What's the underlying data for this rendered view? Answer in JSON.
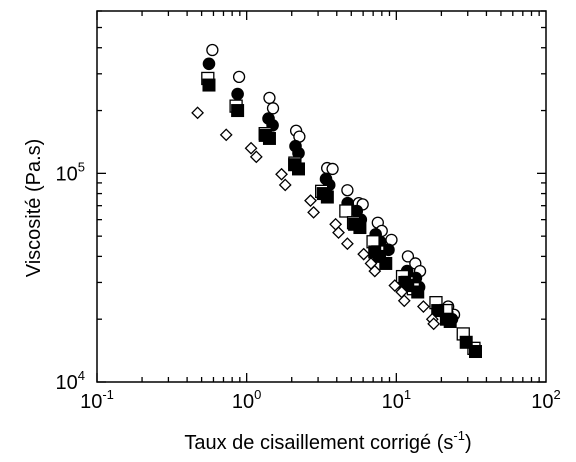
{
  "chart_data": {
    "type": "scatter",
    "title": "",
    "xlabel": "Taux de cisaillement corrigé (s",
    "xlabel_sup": "-1",
    "xlabel_end": ")",
    "ylabel": "Viscosité (Pa.s)",
    "x_scale": "log",
    "y_scale": "log",
    "xlim": [
      0.1,
      100
    ],
    "ylim": [
      10000,
      600000
    ],
    "grid": false,
    "legend": "none",
    "x_ticks": [
      {
        "value": 0.1,
        "base": "10",
        "exp": "-1"
      },
      {
        "value": 1,
        "base": "10",
        "exp": "0"
      },
      {
        "value": 10,
        "base": "10",
        "exp": "1"
      },
      {
        "value": 100,
        "base": "10",
        "exp": "2"
      }
    ],
    "y_ticks": [
      {
        "value": 10000,
        "base": "10",
        "exp": "4"
      },
      {
        "value": 100000,
        "base": "10",
        "exp": "5"
      }
    ],
    "series": [
      {
        "marker": "open-circle",
        "points": [
          [
            0.59,
            390000
          ],
          [
            0.89,
            290000
          ],
          [
            1.42,
            230000
          ],
          [
            1.5,
            205000
          ],
          [
            2.14,
            160000
          ],
          [
            2.25,
            150000
          ],
          [
            3.45,
            106000
          ],
          [
            3.75,
            105000
          ],
          [
            4.71,
            83000
          ],
          [
            5.61,
            72000
          ],
          [
            5.96,
            71000
          ],
          [
            7.52,
            58000
          ],
          [
            7.99,
            53000
          ],
          [
            9.28,
            48000
          ],
          [
            11.95,
            40000
          ],
          [
            13.39,
            37000
          ],
          [
            14.4,
            34000
          ],
          [
            22.2,
            23000
          ],
          [
            24.3,
            21000
          ]
        ]
      },
      {
        "marker": "filled-circle",
        "points": [
          [
            0.56,
            335000
          ],
          [
            0.87,
            240000
          ],
          [
            1.4,
            183000
          ],
          [
            1.49,
            170000
          ],
          [
            2.12,
            135000
          ],
          [
            2.22,
            125000
          ],
          [
            3.39,
            94000
          ],
          [
            3.56,
            88000
          ],
          [
            4.73,
            72000
          ],
          [
            5.44,
            66000
          ],
          [
            5.79,
            60000
          ],
          [
            7.28,
            51000
          ],
          [
            7.8,
            47000
          ],
          [
            8.86,
            43000
          ],
          [
            11.8,
            34000
          ],
          [
            13.51,
            31500
          ],
          [
            14.19,
            28500
          ],
          [
            21.89,
            21500
          ],
          [
            23.53,
            20000
          ]
        ]
      },
      {
        "marker": "open-square",
        "points": [
          [
            0.55,
            285000
          ],
          [
            0.85,
            210000
          ],
          [
            1.33,
            155000
          ],
          [
            2.1,
            112000
          ],
          [
            3.17,
            82000
          ],
          [
            4.6,
            66000
          ],
          [
            5.18,
            58000
          ],
          [
            6.99,
            47000
          ],
          [
            7.53,
            42000
          ],
          [
            11.0,
            32000
          ],
          [
            11.8,
            30000
          ],
          [
            13.0,
            28000
          ],
          [
            18.4,
            24000
          ],
          [
            21.5,
            22000
          ],
          [
            28.0,
            17000
          ],
          [
            33.0,
            14500
          ]
        ]
      },
      {
        "marker": "filled-square",
        "points": [
          [
            0.56,
            265000
          ],
          [
            0.87,
            200000
          ],
          [
            1.33,
            152000
          ],
          [
            1.42,
            147000
          ],
          [
            2.09,
            110000
          ],
          [
            2.22,
            105000
          ],
          [
            3.25,
            80000
          ],
          [
            3.46,
            77000
          ],
          [
            5.26,
            57000
          ],
          [
            5.71,
            55000
          ],
          [
            7.17,
            42000
          ],
          [
            7.72,
            40000
          ],
          [
            8.5,
            37000
          ],
          [
            11.4,
            30000
          ],
          [
            11.92,
            29000
          ],
          [
            13.9,
            27000
          ],
          [
            18.9,
            22000
          ],
          [
            21.6,
            20000
          ],
          [
            22.9,
            19500
          ],
          [
            29.3,
            15500
          ],
          [
            33.8,
            14000
          ]
        ]
      },
      {
        "marker": "open-diamond",
        "points": [
          [
            0.47,
            195000
          ],
          [
            0.73,
            153000
          ],
          [
            1.07,
            132000
          ],
          [
            1.16,
            120000
          ],
          [
            1.71,
            99000
          ],
          [
            1.81,
            88000
          ],
          [
            2.67,
            74000
          ],
          [
            2.8,
            65000
          ],
          [
            3.93,
            57000
          ],
          [
            4.11,
            52000
          ],
          [
            4.71,
            46000
          ],
          [
            6.05,
            41000
          ],
          [
            6.77,
            37000
          ],
          [
            7.18,
            34000
          ],
          [
            9.77,
            29000
          ],
          [
            10.85,
            27000
          ],
          [
            11.3,
            24500
          ],
          [
            15.17,
            23000
          ],
          [
            17.39,
            20000
          ],
          [
            17.76,
            19000
          ]
        ]
      }
    ]
  }
}
